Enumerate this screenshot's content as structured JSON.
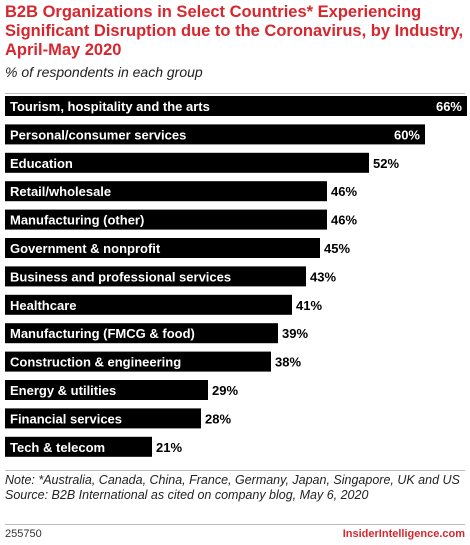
{
  "header": {
    "title": "B2B Organizations in Select Countries* Experiencing Significant Disruption due to the Coronavirus, by Industry, April-May 2020",
    "subtitle": "% of respondents in each group"
  },
  "chart_data": {
    "type": "bar",
    "orientation": "horizontal",
    "categories": [
      "Tourism, hospitality and the arts",
      "Personal/consumer services",
      "Education",
      "Retail/wholesale",
      "Manufacturing (other)",
      "Government & nonprofit",
      "Business and professional services",
      "Healthcare",
      "Manufacturing (FMCG & food)",
      "Construction & engineering",
      "Energy & utilities",
      "Financial services",
      "Tech & telecom"
    ],
    "values": [
      66,
      60,
      52,
      46,
      46,
      45,
      43,
      41,
      39,
      38,
      29,
      28,
      21
    ],
    "value_labels": [
      "66%",
      "60%",
      "52%",
      "46%",
      "46%",
      "45%",
      "43%",
      "41%",
      "39%",
      "38%",
      "29%",
      "28%",
      "21%"
    ],
    "xlim": [
      0,
      66
    ],
    "bar_color": "#000000",
    "label_color": "#ffffff"
  },
  "footer": {
    "note": "Note: *Australia, Canada, China, France, Germany, Japan, Singapore, UK and US",
    "source": "Source: B2B International as cited on company blog, May 6, 2020",
    "id": "255750",
    "brand": "InsiderIntelligence.com"
  }
}
